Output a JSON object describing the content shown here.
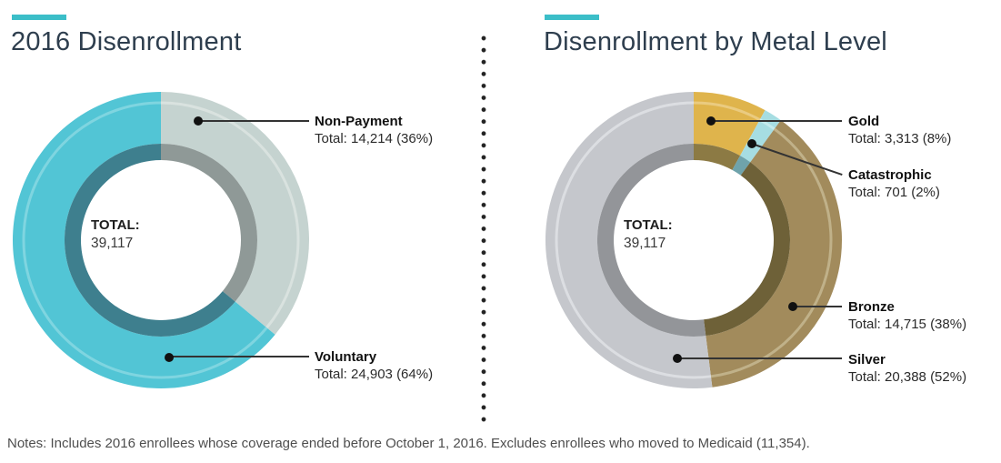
{
  "accent_color": "#3bbec8",
  "notes": "Notes: Includes 2016 enrollees whose coverage ended before October 1, 2016. Excludes enrollees who moved to Medicaid (11,354).",
  "chart_data": [
    {
      "type": "donut",
      "title": "2016 Disenrollment",
      "total": 39117,
      "total_label": "TOTAL:",
      "total_value": "39,117",
      "start_angle_deg": 0,
      "clockwise": true,
      "legend_position": "right-callouts",
      "slices": [
        {
          "label": "Non-Payment",
          "value": 14214,
          "pct": 36,
          "detail": "Total: 14,214 (36%)",
          "color": "#c5d3d0",
          "inner_color": "#8f9997",
          "highlight_color": "#d9e2df"
        },
        {
          "label": "Voluntary",
          "value": 24903,
          "pct": 64,
          "detail": "Total: 24,903 (64%)",
          "color": "#52c5d5",
          "inner_color": "#3e7f8e",
          "highlight_color": "#7fd5e0"
        }
      ]
    },
    {
      "type": "donut",
      "title": "Disenrollment by Metal Level",
      "total": 39117,
      "total_label": "TOTAL:",
      "total_value": "39,117",
      "start_angle_deg": 0,
      "clockwise": true,
      "legend_position": "right-callouts",
      "slices": [
        {
          "label": "Gold",
          "value": 3313,
          "pct": 8,
          "detail": "Total: 3,313 (8%)",
          "color": "#dfb44c",
          "inner_color": "#8c7a44",
          "highlight_color": "#eacb80"
        },
        {
          "label": "Catastrophic",
          "value": 701,
          "pct": 2,
          "detail": "Total: 701 (2%)",
          "color": "#a6dde2",
          "inner_color": "#6fa3ab",
          "highlight_color": "#c4eaec"
        },
        {
          "label": "Bronze",
          "value": 14715,
          "pct": 38,
          "detail": "Total: 14,715 (38%)",
          "color": "#a28b5c",
          "inner_color": "#6e6138",
          "highlight_color": "#c0b189"
        },
        {
          "label": "Silver",
          "value": 20388,
          "pct": 52,
          "detail": "Total: 20,388 (52%)",
          "color": "#c5c7cc",
          "inner_color": "#939599",
          "highlight_color": "#dcdee2"
        }
      ]
    }
  ]
}
